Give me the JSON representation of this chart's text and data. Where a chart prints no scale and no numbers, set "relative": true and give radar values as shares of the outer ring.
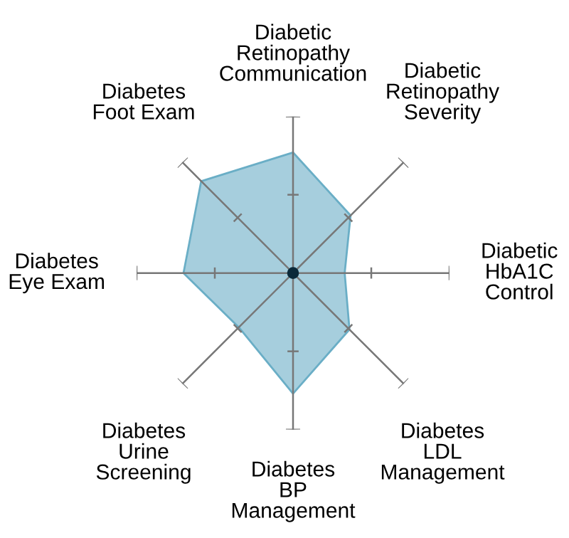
{
  "chart_data": {
    "type": "radar",
    "relative": true,
    "categories": [
      "Diabetic\nRetinopathy\nCommunication",
      "Diabetic\nRetinopathy\nSeverity",
      "Diabetic\nHbA1C\nControl",
      "Diabetes\nLDL\nManagement",
      "Diabetes\nBP\nManagement",
      "Diabetes\nUrine\nScreening",
      "Diabetes\nEye Exam",
      "Diabetes\nFoot Exam"
    ],
    "series": [
      {
        "color": "#6aaec6",
        "values": [
          0.77,
          0.52,
          0.33,
          0.51,
          0.77,
          0.49,
          0.7,
          0.83
        ]
      }
    ]
  }
}
